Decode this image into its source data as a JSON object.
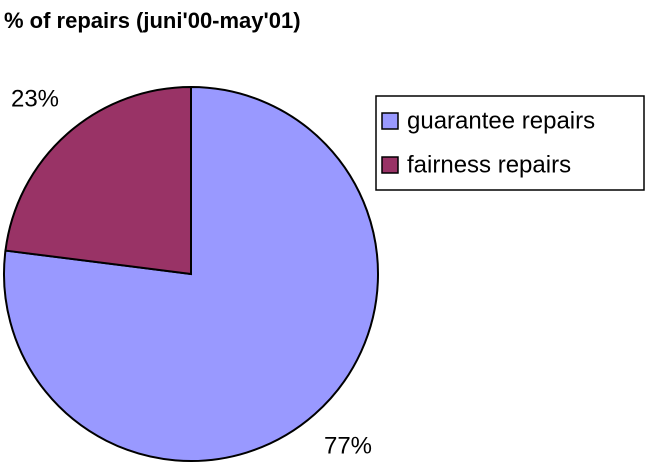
{
  "chart_data": {
    "type": "pie",
    "title": "% of repairs (juni'00-may'01)",
    "categories": [
      "guarantee repairs",
      "fairness repairs"
    ],
    "values": [
      77,
      23
    ],
    "value_labels": [
      "77%",
      "23%"
    ],
    "colors": [
      "#9999ff",
      "#993366"
    ],
    "legend": "right"
  }
}
